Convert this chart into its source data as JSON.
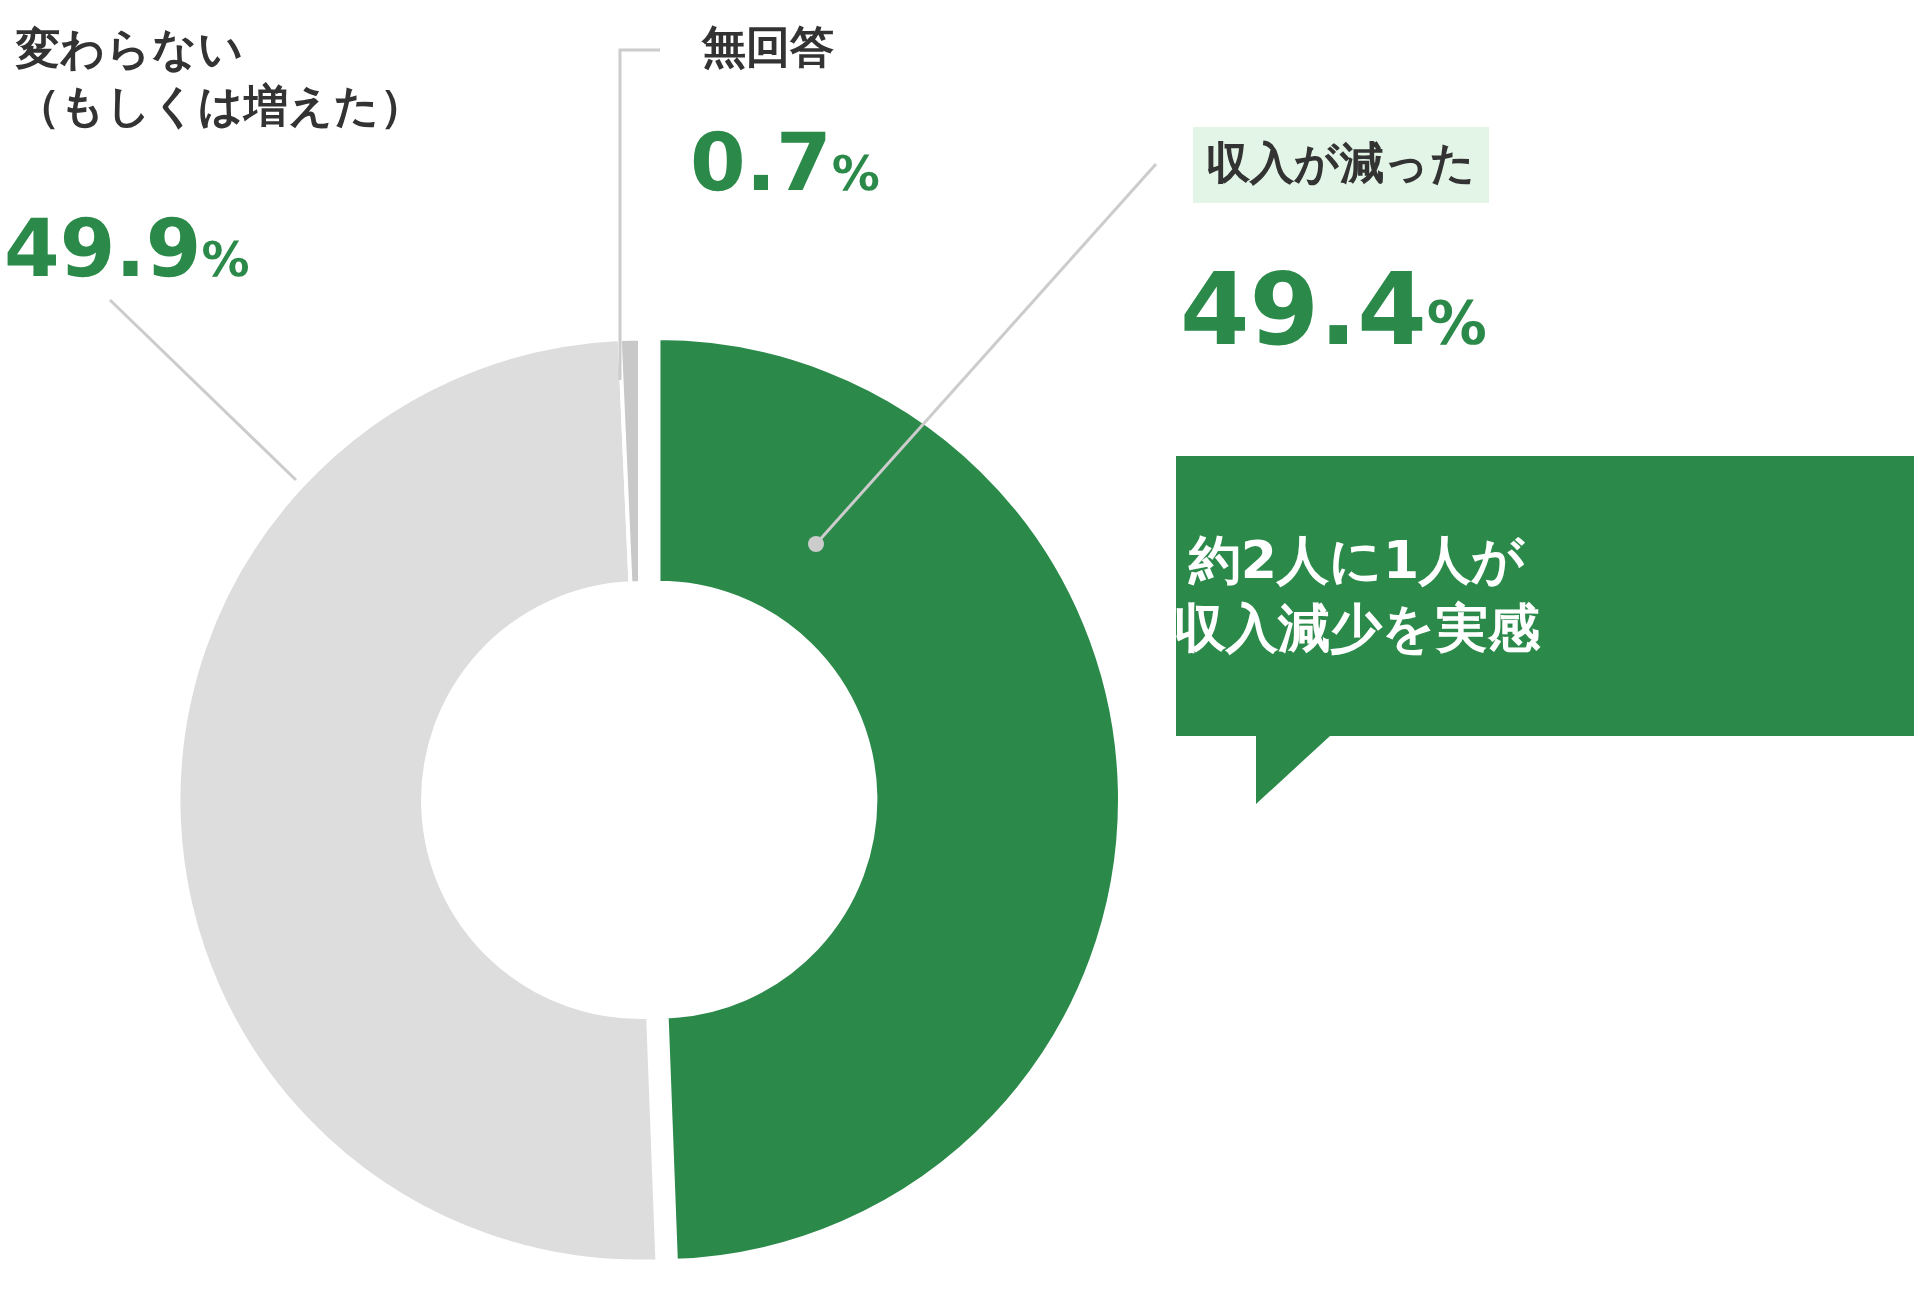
{
  "chart_data": {
    "type": "donut",
    "categories": [
      "収入が減った",
      "変わらない（もしくは増えた）",
      "無回答"
    ],
    "values": [
      49.4,
      49.9,
      0.7
    ],
    "value_labels": [
      "49.4%",
      "49.9%",
      "0.7%"
    ],
    "colors": [
      "#2b8a4a",
      "#dddddd",
      "#c8c8c8"
    ],
    "annotations": [
      "約2人に1人が収入減少を実感"
    ],
    "legend": false
  }
}
